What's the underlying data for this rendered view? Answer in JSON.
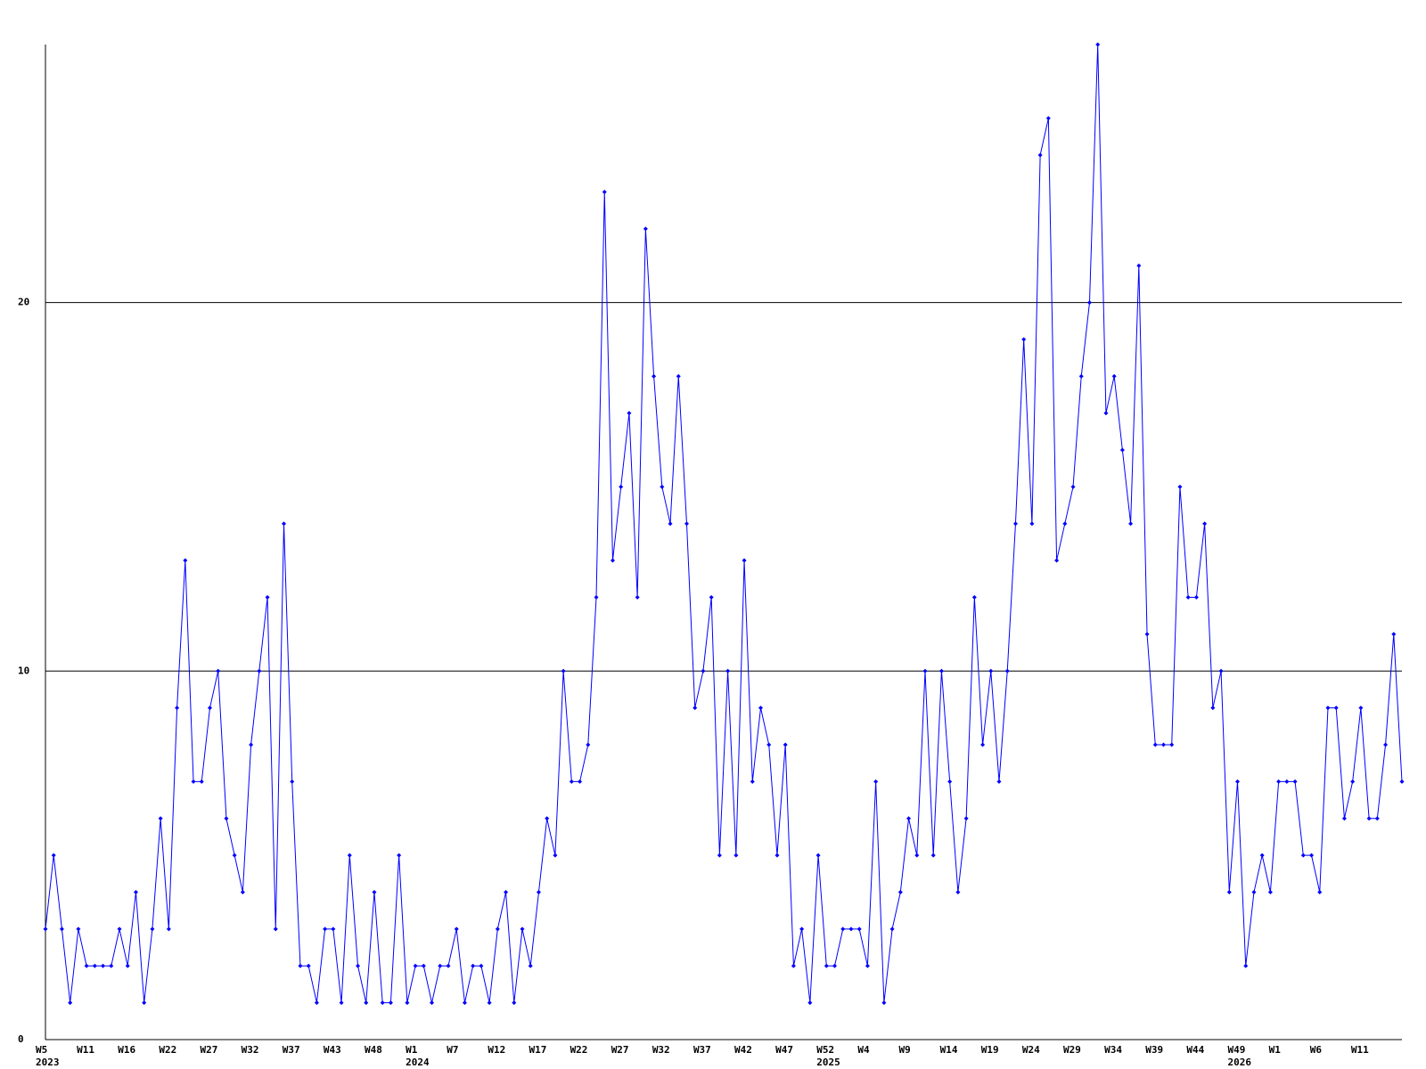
{
  "chart_data": {
    "type": "line",
    "color": "#0000ff",
    "grid": true,
    "ylim": [
      0,
      27
    ],
    "yticks": [
      0,
      10,
      20
    ],
    "categories": [
      "W5",
      null,
      null,
      null,
      null,
      "W11",
      null,
      null,
      null,
      null,
      "W16",
      null,
      null,
      null,
      null,
      "W22",
      null,
      null,
      null,
      null,
      "W27",
      null,
      null,
      null,
      null,
      "W32",
      null,
      null,
      null,
      null,
      "W37",
      null,
      null,
      null,
      null,
      "W43",
      null,
      null,
      null,
      null,
      "W48",
      null,
      null,
      null,
      null,
      "W1",
      null,
      null,
      null,
      null,
      "W7",
      null,
      null,
      null,
      null,
      "W12",
      null,
      null,
      null,
      null,
      "W17",
      null,
      null,
      null,
      null,
      "W22",
      null,
      null,
      null,
      null,
      "W27",
      null,
      null,
      null,
      null,
      "W32",
      null,
      null,
      null,
      null,
      "W37",
      null,
      null,
      null,
      null,
      "W42",
      null,
      null,
      null,
      null,
      "W47",
      null,
      null,
      null,
      null,
      "W52",
      null,
      null,
      null,
      null,
      "W4",
      null,
      null,
      null,
      null,
      "W9",
      null,
      null,
      null,
      null,
      "W14",
      null,
      null,
      null,
      null,
      "W19",
      null,
      null,
      null,
      null,
      "W24",
      null,
      null,
      null,
      null,
      "W29",
      null,
      null,
      null,
      null,
      "W34",
      null,
      null,
      null,
      null,
      "W39",
      null,
      null,
      null,
      null,
      "W44",
      null,
      null,
      null,
      null,
      "W49",
      null,
      null,
      null,
      null,
      "W1",
      null,
      null,
      null,
      null,
      "W6",
      null,
      null,
      null,
      null,
      "W11",
      null,
      null,
      null,
      null,
      null
    ],
    "category_years": [
      "2023",
      null,
      null,
      null,
      null,
      null,
      null,
      null,
      null,
      null,
      null,
      null,
      null,
      null,
      null,
      null,
      null,
      null,
      null,
      null,
      null,
      null,
      null,
      null,
      null,
      null,
      null,
      null,
      null,
      null,
      null,
      null,
      null,
      null,
      null,
      null,
      null,
      null,
      null,
      null,
      null,
      null,
      null,
      null,
      null,
      "2024",
      null,
      null,
      null,
      null,
      null,
      null,
      null,
      null,
      null,
      null,
      null,
      null,
      null,
      null,
      null,
      null,
      null,
      null,
      null,
      null,
      null,
      null,
      null,
      null,
      null,
      null,
      null,
      null,
      null,
      null,
      null,
      null,
      null,
      null,
      null,
      null,
      null,
      null,
      null,
      null,
      null,
      null,
      null,
      null,
      null,
      null,
      null,
      null,
      null,
      "2025",
      null,
      null,
      null,
      null,
      null,
      null,
      null,
      null,
      null,
      null,
      null,
      null,
      null,
      null,
      null,
      null,
      null,
      null,
      null,
      null,
      null,
      null,
      null,
      null,
      null,
      null,
      null,
      null,
      null,
      null,
      null,
      null,
      null,
      null,
      null,
      null,
      null,
      null,
      null,
      null,
      null,
      null,
      null,
      null,
      null,
      null,
      null,
      null,
      null,
      "2026",
      null,
      null,
      null,
      null,
      null,
      null,
      null,
      null,
      null,
      null,
      null,
      null,
      null,
      null,
      null
    ],
    "values": [
      3,
      5,
      3,
      1,
      3,
      2,
      2,
      2,
      2,
      3,
      2,
      4,
      1,
      3,
      6,
      3,
      9,
      13,
      7,
      7,
      9,
      10,
      6,
      5,
      4,
      8,
      10,
      12,
      3,
      14,
      7,
      2,
      2,
      1,
      3,
      3,
      1,
      5,
      2,
      1,
      4,
      1,
      1,
      5,
      1,
      2,
      2,
      1,
      2,
      2,
      3,
      1,
      2,
      2,
      1,
      3,
      4,
      1,
      3,
      2,
      4,
      6,
      5,
      10,
      7,
      7,
      8,
      12,
      23,
      13,
      15,
      17,
      12,
      22,
      18,
      15,
      14,
      18,
      14,
      9,
      10,
      12,
      5,
      10,
      5,
      13,
      7,
      9,
      8,
      5,
      8,
      2,
      3,
      1,
      5,
      2,
      2,
      3,
      3,
      3,
      2,
      7,
      1,
      3,
      4,
      6,
      5,
      10,
      5,
      10,
      7,
      4,
      6,
      12,
      8,
      10,
      7,
      10,
      14,
      19,
      14,
      24,
      25,
      13,
      14,
      15,
      18,
      20,
      27,
      17,
      18,
      16,
      14,
      21,
      11,
      8,
      8,
      8,
      15,
      12,
      12,
      14,
      9,
      10,
      4,
      7,
      2,
      4,
      5,
      4,
      7,
      7,
      7,
      5,
      5,
      4,
      9,
      9,
      6,
      7,
      9,
      6,
      6,
      8,
      11,
      7
    ]
  }
}
